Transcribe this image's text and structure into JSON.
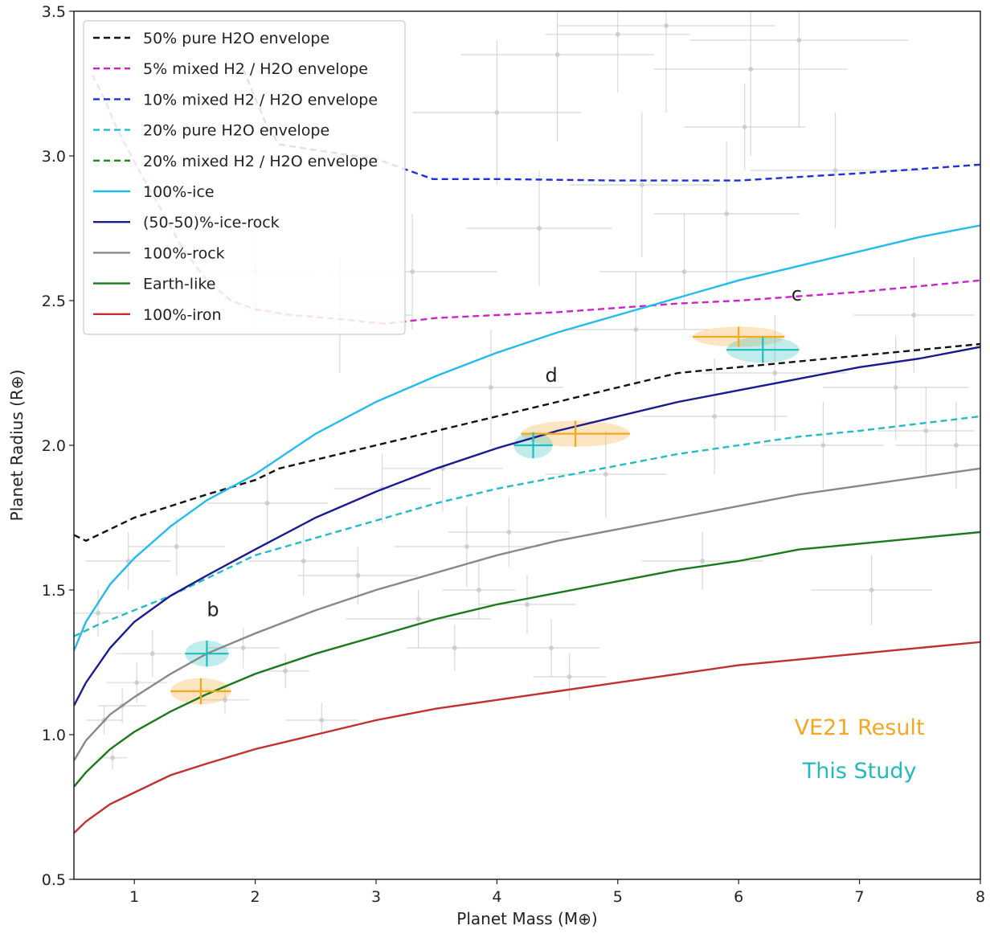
{
  "chart_data": {
    "type": "line",
    "xlabel": "Planet Mass (M⊕)",
    "ylabel": "Planet Radius (R⊕)",
    "xlim": [
      0.5,
      8
    ],
    "ylim": [
      0.5,
      3.5
    ],
    "x_ticks": [
      1,
      2,
      3,
      4,
      5,
      6,
      7,
      8
    ],
    "y_ticks": [
      0.5,
      1.0,
      1.5,
      2.0,
      2.5,
      3.0,
      3.5
    ],
    "grid": false,
    "legend_position": "top-left",
    "series": [
      {
        "name": "50% pure H2O envelope",
        "color": "#111111",
        "style": "dashed",
        "x": [
          0.5,
          0.6,
          0.8,
          1.0,
          1.3,
          1.6,
          2.0,
          2.2,
          2.6,
          3.0,
          3.5,
          4.0,
          4.5,
          5.0,
          5.5,
          5.75,
          6.0,
          7.0,
          8.0
        ],
        "y": [
          1.69,
          1.67,
          1.71,
          1.75,
          1.79,
          1.83,
          1.88,
          1.92,
          1.96,
          2.0,
          2.05,
          2.1,
          2.15,
          2.2,
          2.25,
          2.26,
          2.27,
          2.31,
          2.35
        ]
      },
      {
        "name": "5% mixed H2 / H2O envelope",
        "color": "#cc22cc",
        "style": "dashed",
        "x": [
          0.65,
          0.75,
          0.85,
          1.0,
          1.2,
          1.4,
          1.6,
          1.8,
          2.0,
          2.3,
          2.6,
          3.07,
          3.5,
          4.0,
          4.5,
          5.0,
          5.5,
          6.0,
          6.5,
          7.0,
          7.5,
          8.0
        ],
        "y": [
          3.28,
          3.2,
          3.1,
          2.98,
          2.83,
          2.68,
          2.57,
          2.5,
          2.47,
          2.45,
          2.44,
          2.42,
          2.44,
          2.45,
          2.46,
          2.475,
          2.49,
          2.5,
          2.515,
          2.53,
          2.55,
          2.57
        ]
      },
      {
        "name": "10% mixed H2 / H2O envelope",
        "color": "#1f2fd8",
        "style": "dashed",
        "x": [
          1.9,
          2.0,
          2.1,
          2.2,
          2.5,
          3.0,
          3.2,
          3.47,
          4.0,
          5.0,
          6.0,
          7.0,
          8.0
        ],
        "y": [
          3.3,
          3.2,
          3.1,
          3.04,
          3.02,
          2.99,
          2.96,
          2.92,
          2.92,
          2.915,
          2.915,
          2.94,
          2.97
        ]
      },
      {
        "name": "20% pure H2O envelope",
        "color": "#22bbcc",
        "style": "dashed",
        "x": [
          0.5,
          0.7,
          1.0,
          1.3,
          1.6,
          2.0,
          2.5,
          3.0,
          3.5,
          4.0,
          4.5,
          5.0,
          5.5,
          6.0,
          6.5,
          7.0,
          7.5,
          8.0
        ],
        "y": [
          1.34,
          1.38,
          1.43,
          1.48,
          1.54,
          1.62,
          1.68,
          1.74,
          1.8,
          1.85,
          1.89,
          1.93,
          1.97,
          2.0,
          2.03,
          2.05,
          2.075,
          2.1
        ]
      },
      {
        "name": "20% mixed H2 / H2O envelope",
        "color": "#1a8a1a",
        "style": "dashed",
        "x": [],
        "y": []
      },
      {
        "name": "100%-ice",
        "color": "#22bbee",
        "style": "solid",
        "x": [
          0.5,
          0.6,
          0.8,
          1.0,
          1.3,
          1.6,
          2.0,
          2.5,
          3.0,
          3.5,
          4.0,
          4.5,
          5.0,
          5.5,
          6.0,
          6.5,
          7.0,
          7.5,
          8.0
        ],
        "y": [
          1.29,
          1.39,
          1.52,
          1.61,
          1.72,
          1.81,
          1.9,
          2.04,
          2.15,
          2.24,
          2.32,
          2.39,
          2.45,
          2.51,
          2.57,
          2.62,
          2.67,
          2.72,
          2.76
        ]
      },
      {
        "name": "(50-50)%-ice-rock",
        "color": "#1a1a90",
        "style": "solid",
        "x": [
          0.5,
          0.6,
          0.8,
          1.0,
          1.3,
          1.6,
          2.0,
          2.5,
          3.0,
          3.5,
          4.0,
          4.5,
          5.0,
          5.5,
          6.0,
          6.5,
          7.0,
          7.5,
          8.0
        ],
        "y": [
          1.1,
          1.18,
          1.3,
          1.39,
          1.48,
          1.55,
          1.64,
          1.75,
          1.84,
          1.92,
          1.99,
          2.05,
          2.1,
          2.15,
          2.19,
          2.23,
          2.27,
          2.3,
          2.34
        ]
      },
      {
        "name": "100%-rock",
        "color": "#888888",
        "style": "solid",
        "x": [
          0.5,
          0.6,
          0.8,
          1.0,
          1.3,
          1.6,
          2.0,
          2.5,
          3.0,
          3.5,
          4.0,
          4.5,
          5.0,
          5.5,
          6.0,
          6.5,
          7.0,
          7.5,
          8.0
        ],
        "y": [
          0.91,
          0.98,
          1.07,
          1.13,
          1.21,
          1.28,
          1.35,
          1.43,
          1.5,
          1.56,
          1.62,
          1.67,
          1.71,
          1.75,
          1.79,
          1.83,
          1.86,
          1.89,
          1.92
        ]
      },
      {
        "name": "Earth-like",
        "color": "#1a7a1a",
        "style": "solid",
        "x": [
          0.5,
          0.6,
          0.8,
          1.0,
          1.3,
          1.6,
          2.0,
          2.5,
          3.0,
          3.5,
          4.0,
          4.5,
          5.0,
          5.5,
          6.0,
          6.5,
          7.0,
          7.5,
          8.0
        ],
        "y": [
          0.82,
          0.87,
          0.95,
          1.01,
          1.08,
          1.14,
          1.21,
          1.28,
          1.34,
          1.4,
          1.45,
          1.49,
          1.53,
          1.57,
          1.6,
          1.64,
          1.66,
          1.68,
          1.7
        ]
      },
      {
        "name": "100%-iron",
        "color": "#c03030",
        "style": "solid",
        "x": [
          0.5,
          0.6,
          0.8,
          1.0,
          1.3,
          1.6,
          2.0,
          2.5,
          3.0,
          3.5,
          4.0,
          4.5,
          5.0,
          5.5,
          6.0,
          6.5,
          7.0,
          7.5,
          8.0
        ],
        "y": [
          0.66,
          0.7,
          0.76,
          0.8,
          0.86,
          0.9,
          0.95,
          1.0,
          1.05,
          1.09,
          1.12,
          1.15,
          1.18,
          1.21,
          1.24,
          1.26,
          1.28,
          1.3,
          1.32
        ]
      }
    ],
    "measurements": [
      {
        "planet": "b",
        "source": "VE21 Result",
        "color": "#f5a623",
        "mass": 1.55,
        "mass_err": 0.25,
        "radius": 1.15,
        "radius_err": 0.045
      },
      {
        "planet": "b",
        "source": "This Study",
        "color": "#22bbbb",
        "mass": 1.6,
        "mass_err": 0.18,
        "radius": 1.28,
        "radius_err": 0.045
      },
      {
        "planet": "d",
        "source": "VE21 Result",
        "color": "#f5a623",
        "mass": 4.65,
        "mass_err": 0.45,
        "radius": 2.04,
        "radius_err": 0.045
      },
      {
        "planet": "d",
        "source": "This Study",
        "color": "#22bbbb",
        "mass": 4.3,
        "mass_err": 0.16,
        "radius": 2.0,
        "radius_err": 0.045
      },
      {
        "planet": "c",
        "source": "VE21 Result",
        "color": "#f5a623",
        "mass": 6.0,
        "mass_err": 0.38,
        "radius": 2.375,
        "radius_err": 0.035
      },
      {
        "planet": "c",
        "source": "This Study",
        "color": "#22bbbb",
        "mass": 6.2,
        "mass_err": 0.3,
        "radius": 2.33,
        "radius_err": 0.045
      }
    ],
    "planet_labels": [
      {
        "text": "b",
        "x": 1.65,
        "y": 1.41
      },
      {
        "text": "d",
        "x": 4.45,
        "y": 2.22
      },
      {
        "text": "c",
        "x": 6.48,
        "y": 2.5
      }
    ],
    "annotations": [
      {
        "text": "VE21 Result",
        "color": "#f5a623",
        "x": 7.0,
        "y": 1.0
      },
      {
        "text": "This Study",
        "color": "#22bbbb",
        "x": 7.0,
        "y": 0.85
      }
    ],
    "background_points": {
      "color": "#c8c8c8",
      "points": [
        [
          0.75,
          1.05,
          0.15,
          0.05
        ],
        [
          0.82,
          0.92,
          0.12,
          0.04
        ],
        [
          0.9,
          1.1,
          0.2,
          0.06
        ],
        [
          1.02,
          1.18,
          0.25,
          0.07
        ],
        [
          1.15,
          1.28,
          0.3,
          0.08
        ],
        [
          0.7,
          1.42,
          0.2,
          0.08
        ],
        [
          0.95,
          1.6,
          0.35,
          0.1
        ],
        [
          1.35,
          1.65,
          0.4,
          0.1
        ],
        [
          1.75,
          1.12,
          0.2,
          0.05
        ],
        [
          1.9,
          1.3,
          0.3,
          0.07
        ],
        [
          2.1,
          1.8,
          0.5,
          0.15
        ],
        [
          2.25,
          1.22,
          0.2,
          0.06
        ],
        [
          2.4,
          1.6,
          0.45,
          0.12
        ],
        [
          2.55,
          1.05,
          0.3,
          0.06
        ],
        [
          2.7,
          2.45,
          0.6,
          0.2
        ],
        [
          2.85,
          1.55,
          0.5,
          0.1
        ],
        [
          3.05,
          1.85,
          0.4,
          0.12
        ],
        [
          3.35,
          1.4,
          0.6,
          0.1
        ],
        [
          3.55,
          1.92,
          0.5,
          0.15
        ],
        [
          3.65,
          1.3,
          0.4,
          0.08
        ],
        [
          3.75,
          1.65,
          0.6,
          0.14
        ],
        [
          3.85,
          1.5,
          0.3,
          0.1
        ],
        [
          3.95,
          2.2,
          0.6,
          0.2
        ],
        [
          4.0,
          3.15,
          0.7,
          0.25
        ],
        [
          4.1,
          1.7,
          0.5,
          0.12
        ],
        [
          4.25,
          1.45,
          0.4,
          0.1
        ],
        [
          4.35,
          2.75,
          0.6,
          0.2
        ],
        [
          4.5,
          3.35,
          0.8,
          0.3
        ],
        [
          4.6,
          1.2,
          0.3,
          0.08
        ],
        [
          4.9,
          1.9,
          0.5,
          0.15
        ],
        [
          5.15,
          2.4,
          0.6,
          0.2
        ],
        [
          5.4,
          3.45,
          0.9,
          0.3
        ],
        [
          5.55,
          2.6,
          0.7,
          0.2
        ],
        [
          5.7,
          1.6,
          0.5,
          0.1
        ],
        [
          5.9,
          2.8,
          0.6,
          0.25
        ],
        [
          6.1,
          3.3,
          0.8,
          0.3
        ],
        [
          6.3,
          2.25,
          0.6,
          0.2
        ],
        [
          6.5,
          3.4,
          0.9,
          0.3
        ],
        [
          6.7,
          2.0,
          0.5,
          0.15
        ],
        [
          6.8,
          2.95,
          0.7,
          0.2
        ],
        [
          7.1,
          1.5,
          0.5,
          0.12
        ],
        [
          7.3,
          2.2,
          0.6,
          0.18
        ],
        [
          7.45,
          2.45,
          0.5,
          0.2
        ],
        [
          7.55,
          2.05,
          0.4,
          0.15
        ],
        [
          7.8,
          2.0,
          0.5,
          0.15
        ],
        [
          5.0,
          3.42,
          0.6,
          0.2
        ],
        [
          6.05,
          3.1,
          0.5,
          0.15
        ],
        [
          5.2,
          2.9,
          0.6,
          0.25
        ],
        [
          3.3,
          2.6,
          0.7,
          0.2
        ],
        [
          2.0,
          2.6,
          0.5,
          0.2
        ],
        [
          4.45,
          1.3,
          0.4,
          0.1
        ],
        [
          5.8,
          2.1,
          0.6,
          0.2
        ]
      ]
    }
  }
}
